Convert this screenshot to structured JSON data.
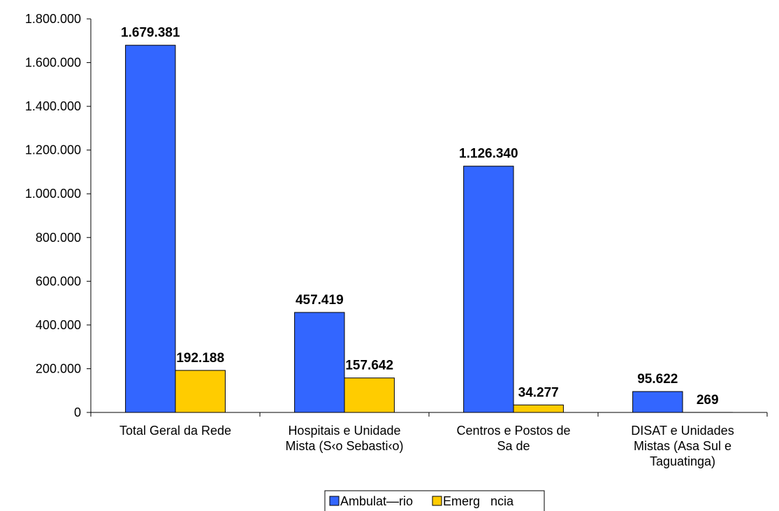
{
  "chart_data": {
    "type": "bar",
    "categories": [
      [
        "Total Geral da Rede"
      ],
      [
        "Hospitais e Unidade",
        "Mista (S‹o Sebasti‹o)"
      ],
      [
        "Centros e Postos de",
        "Sa   de"
      ],
      [
        "DISAT e Unidades",
        "Mistas (Asa Sul e",
        "Taguatinga)"
      ]
    ],
    "series": [
      {
        "name": "Ambulat—rio",
        "color": "#3366ff",
        "values": [
          1679381,
          457419,
          1126340,
          95622
        ],
        "labels": [
          "1.679.381",
          "457.419",
          "1.126.340",
          "95.622"
        ]
      },
      {
        "name": "Emerg   ncia",
        "color": "#ffcc00",
        "values": [
          192188,
          157642,
          34277,
          269
        ],
        "labels": [
          "192.188",
          "157.642",
          "34.277",
          "269"
        ]
      }
    ],
    "ylim": [
      0,
      1800000
    ],
    "yticks": [
      0,
      200000,
      400000,
      600000,
      800000,
      1000000,
      1200000,
      1400000,
      1600000,
      1800000
    ],
    "ytick_labels": [
      "0",
      "200.000",
      "400.000",
      "600.000",
      "800.000",
      "1.000.000",
      "1.200.000",
      "1.400.000",
      "1.600.000",
      "1.800.000"
    ],
    "grid": false,
    "legend_position": "bottom"
  }
}
